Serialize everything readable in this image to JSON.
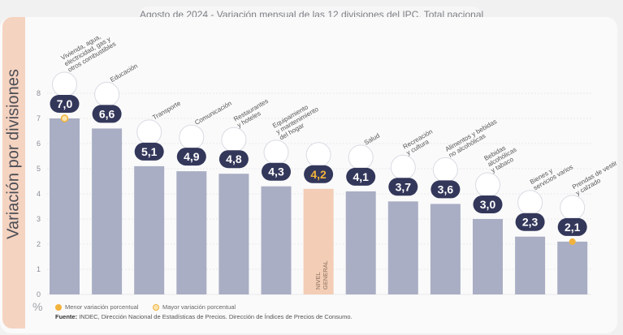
{
  "title": {
    "date": "Agosto de 2024",
    "rest": "- Variación mensual de las 12 divisiones del IPC. Total nacional"
  },
  "colors": {
    "bar": "#a9aec4",
    "general_bar": "#f3cdb5",
    "badge": "#33375a",
    "highlight": "#f2b23b",
    "grid": "#d8d9df"
  },
  "chart_data": {
    "type": "bar",
    "title": "Agosto de 2024 - Variación mensual de las 12 divisiones del IPC. Total nacional",
    "ylabel": "Variación por divisiones",
    "yunit": "%",
    "ylim": [
      0,
      8
    ],
    "yticks": [
      "0",
      "1",
      "2",
      "3",
      "4",
      "5",
      "6",
      "7",
      "8"
    ],
    "categories": [
      [
        "Vivienda, agua,",
        "electricidad, gas y",
        "otros combustibles"
      ],
      [
        "Educación"
      ],
      [
        "Transporte"
      ],
      [
        "Comunicación"
      ],
      [
        "Restaurantes",
        "y hoteles"
      ],
      [
        "Equipamiento",
        "y mantenimiento",
        "del hogar"
      ],
      [
        "NIVEL",
        "GENERAL"
      ],
      [
        "Salud"
      ],
      [
        "Recreación",
        "y cultura"
      ],
      [
        "Alimentos y bebidas",
        "no alcohólicas"
      ],
      [
        "Bebidas",
        "alcohólicas",
        "y tabaco"
      ],
      [
        "Bienes y",
        "servicios varios"
      ],
      [
        "Prendas de vestir",
        "y calzado"
      ]
    ],
    "values": [
      7.0,
      6.6,
      5.1,
      4.9,
      4.8,
      4.3,
      4.2,
      4.1,
      3.7,
      3.6,
      3.0,
      2.3,
      2.1
    ],
    "value_labels": [
      "7,0",
      "6,6",
      "5,1",
      "4,9",
      "4,8",
      "4,3",
      "4,2",
      "4,1",
      "3,7",
      "3,6",
      "3,0",
      "2,3",
      "2,1"
    ],
    "general_index": 6,
    "max_index": 0,
    "min_index": 12
  },
  "legend": {
    "min": "Menor variación porcentual",
    "max": "Mayor variación porcentual"
  },
  "source": {
    "label": "Fuente:",
    "text": "INDEC, Dirección Nacional de Estadísticas de Precios. Dirección de Índices de Precios de Consumo."
  }
}
